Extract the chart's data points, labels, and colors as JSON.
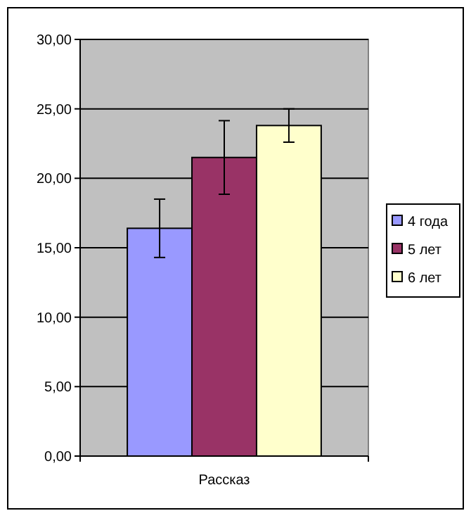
{
  "chart_data": {
    "type": "bar",
    "categories": [
      null,
      null,
      null
    ],
    "xlabel": "Рассказ",
    "series": [
      {
        "name": "4 года",
        "color": "#9999ff",
        "values": [
          16.4,
          null,
          null
        ],
        "errors": [
          2.1,
          null,
          null
        ]
      },
      {
        "name": "5 лет",
        "color": "#993366",
        "values": [
          null,
          21.5,
          null
        ],
        "errors": [
          null,
          2.65,
          null
        ]
      },
      {
        "name": "6 лет",
        "color": "#ffffcc",
        "values": [
          null,
          null,
          23.8
        ],
        "errors": [
          null,
          null,
          1.2
        ]
      }
    ],
    "ylim": [
      0,
      30
    ],
    "yticks": [
      {
        "value": 0,
        "label": "0,00"
      },
      {
        "value": 5,
        "label": "5,00"
      },
      {
        "value": 10,
        "label": "10,00"
      },
      {
        "value": 15,
        "label": "15,00"
      },
      {
        "value": 20,
        "label": "20,00"
      },
      {
        "value": 25,
        "label": "25,00"
      },
      {
        "value": 30,
        "label": "30,00"
      }
    ],
    "grid": "y",
    "legend": "right"
  }
}
